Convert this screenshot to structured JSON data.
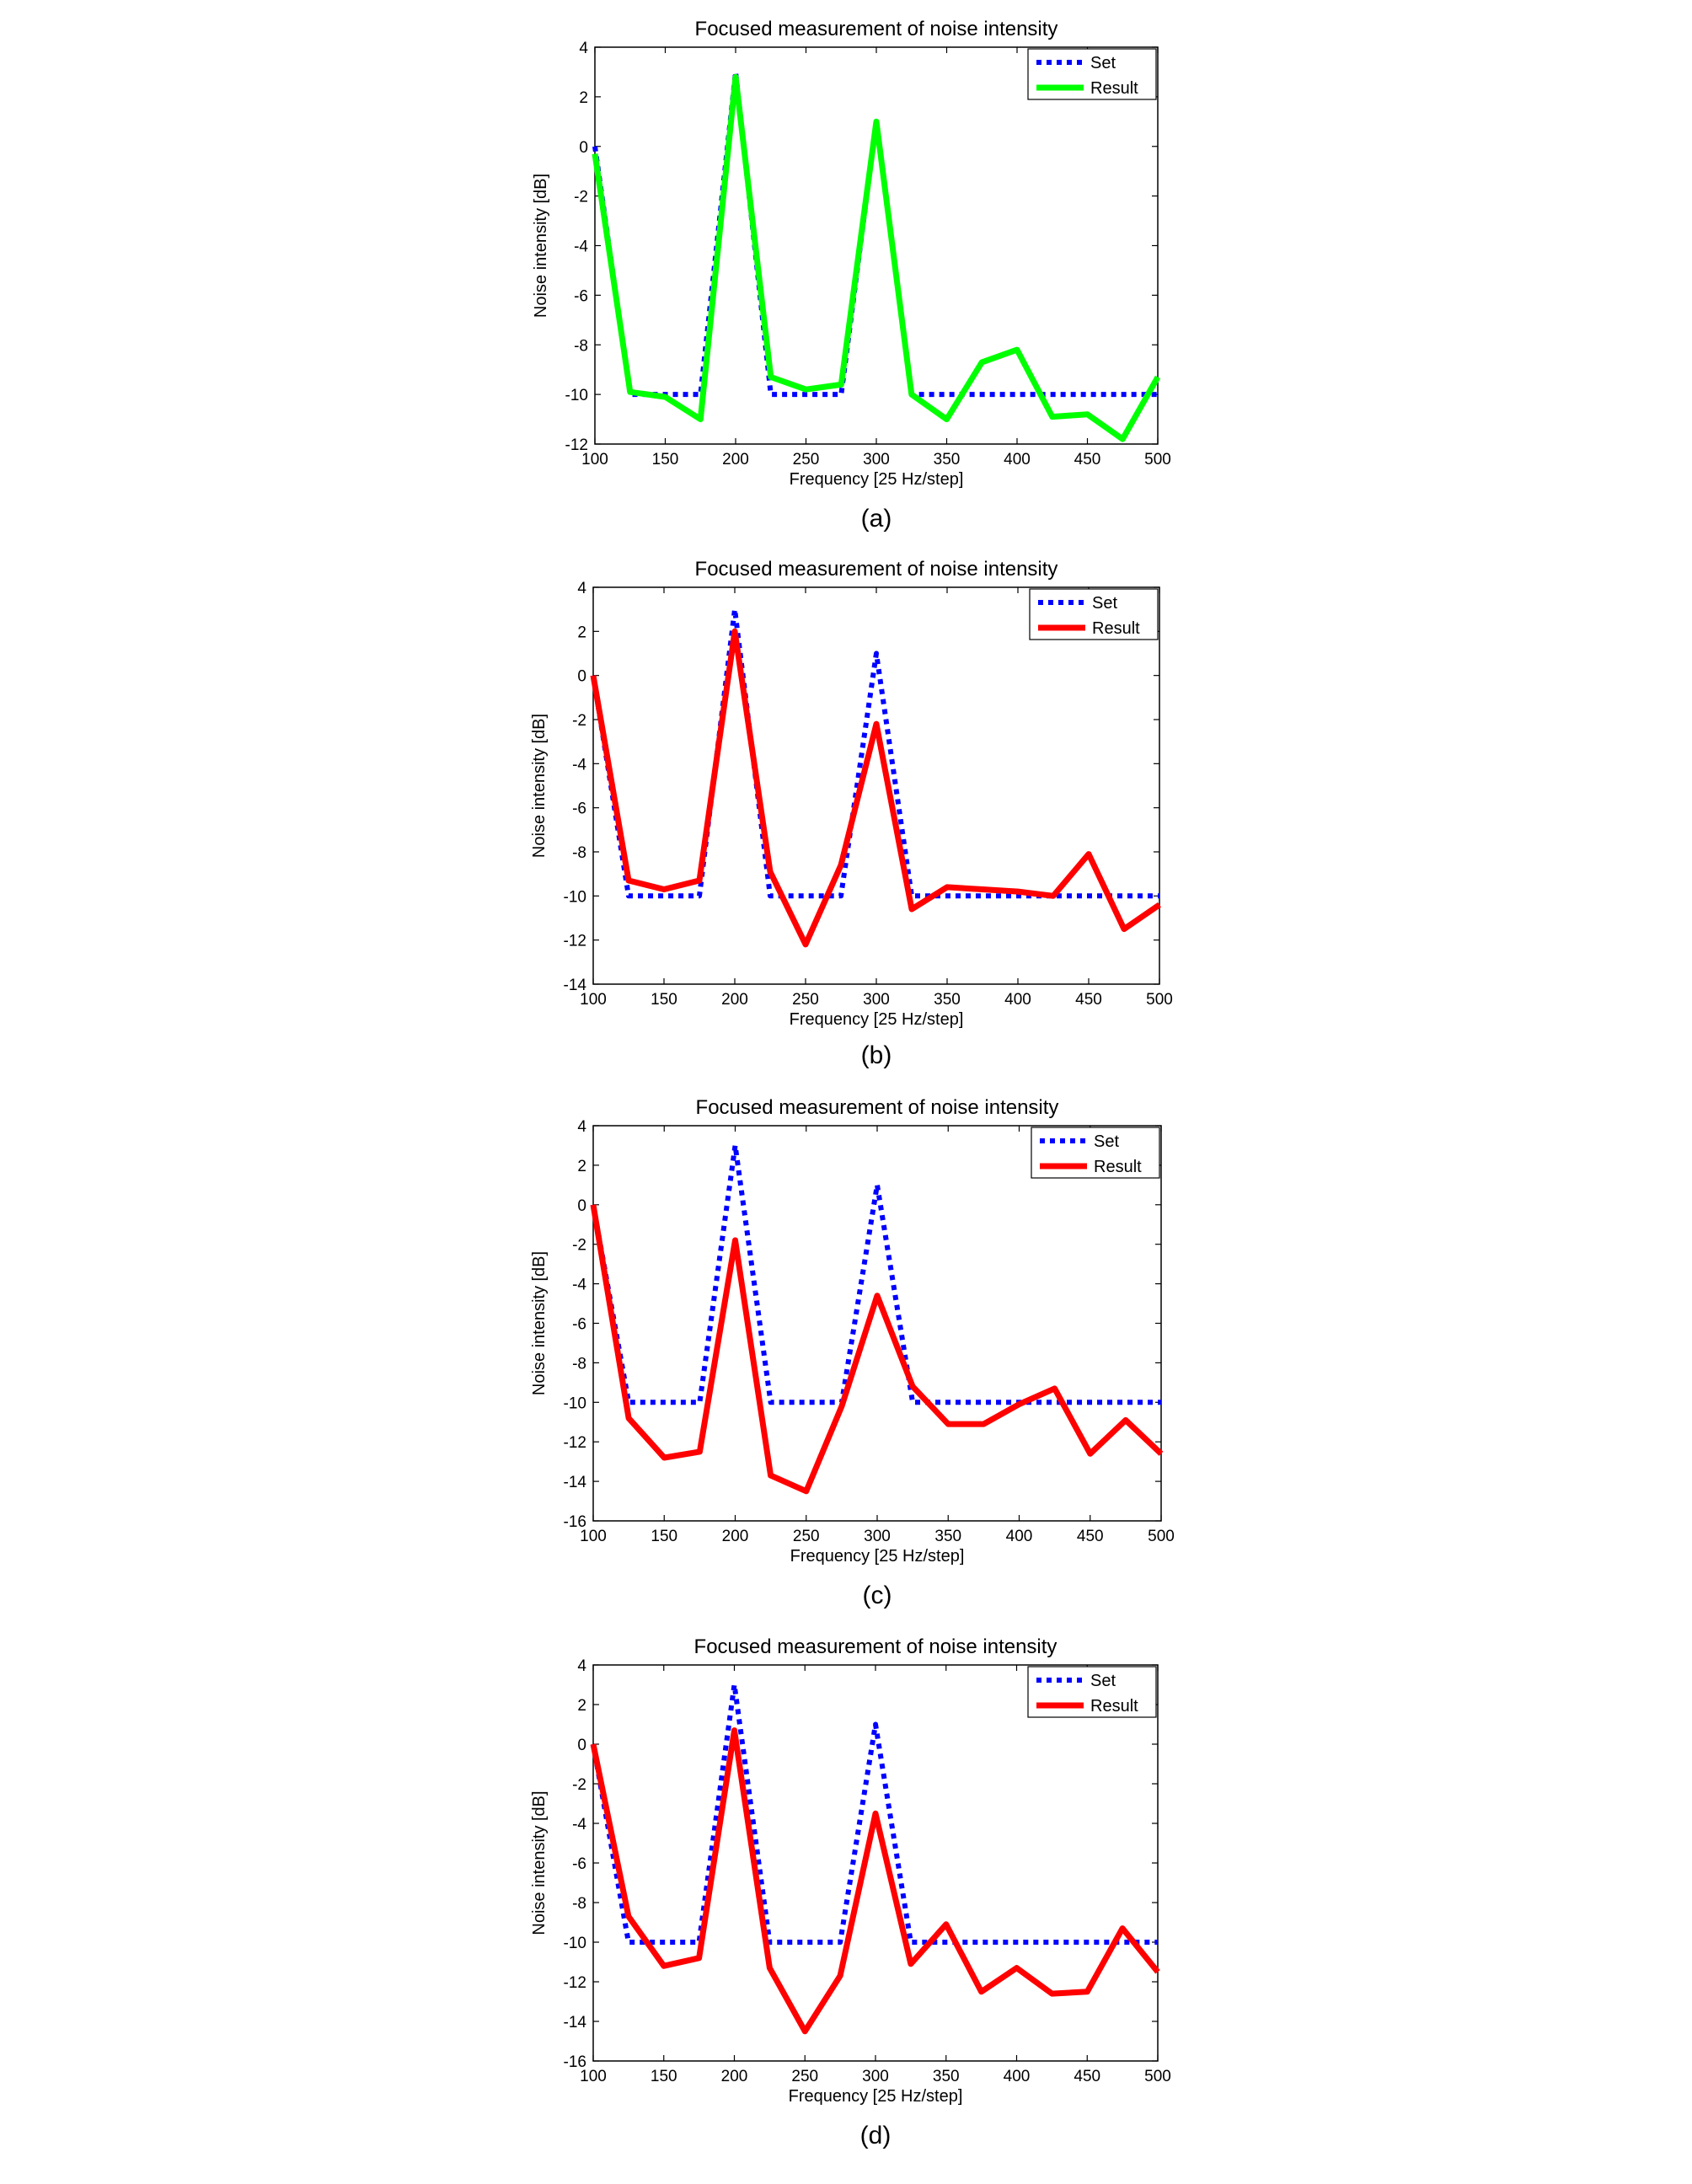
{
  "chart_data": [
    {
      "type": "line",
      "panel_label": "(a)",
      "title": "Focused measurement of noise intensity",
      "xlabel": "Frequency [25 Hz/step]",
      "ylabel": "Noise intensity [dB]",
      "xlim": [
        100,
        500
      ],
      "ylim": [
        -12,
        4
      ],
      "xticks": [
        100,
        150,
        200,
        250,
        300,
        350,
        400,
        450,
        500
      ],
      "yticks": [
        -12,
        -10,
        -8,
        -6,
        -4,
        -2,
        0,
        2,
        4
      ],
      "legend_position": "top-right",
      "x": [
        100,
        125,
        150,
        175,
        200,
        225,
        250,
        275,
        300,
        325,
        350,
        375,
        400,
        425,
        450,
        475,
        500
      ],
      "series": [
        {
          "name": "Set",
          "style": "dotted",
          "color": "#0000ff",
          "values": [
            0,
            -10,
            -10,
            -10,
            3,
            -10,
            -10,
            -10,
            1,
            -10,
            -10,
            -10,
            -10,
            -10,
            -10,
            -10,
            -10
          ]
        },
        {
          "name": "Result",
          "style": "solid",
          "color": "#00ff00",
          "values": [
            -0.3,
            -9.9,
            -10.1,
            -11,
            2.8,
            -9.3,
            -9.8,
            -9.6,
            1,
            -10,
            -11,
            -8.7,
            -8.2,
            -10.9,
            -10.8,
            -11.8,
            -9.3
          ]
        }
      ]
    },
    {
      "type": "line",
      "panel_label": "(b)",
      "title": "Focused measurement of noise intensity",
      "xlabel": "Frequency [25 Hz/step]",
      "ylabel": "Noise intensity [dB]",
      "xlim": [
        100,
        500
      ],
      "ylim": [
        -14,
        4
      ],
      "xticks": [
        100,
        150,
        200,
        250,
        300,
        350,
        400,
        450,
        500
      ],
      "yticks": [
        -14,
        -12,
        -10,
        -8,
        -6,
        -4,
        -2,
        0,
        2,
        4
      ],
      "legend_position": "top-right",
      "x": [
        100,
        125,
        150,
        175,
        200,
        225,
        250,
        275,
        300,
        325,
        350,
        375,
        400,
        425,
        450,
        475,
        500
      ],
      "series": [
        {
          "name": "Set",
          "style": "dotted",
          "color": "#0000ff",
          "values": [
            0,
            -10,
            -10,
            -10,
            3,
            -10,
            -10,
            -10,
            1,
            -10,
            -10,
            -10,
            -10,
            -10,
            -10,
            -10,
            -10
          ]
        },
        {
          "name": "Result",
          "style": "solid",
          "color": "#ff0000",
          "values": [
            0,
            -9.3,
            -9.7,
            -9.3,
            2,
            -8.9,
            -12.2,
            -8.6,
            -2.2,
            -10.6,
            -9.6,
            -9.7,
            -9.8,
            -10,
            -8.1,
            -11.5,
            -10.4
          ]
        }
      ]
    },
    {
      "type": "line",
      "panel_label": "(c)",
      "title": "Focused measurement of noise intensity",
      "xlabel": "Frequency [25 Hz/step]",
      "ylabel": "Noise intensity [dB]",
      "xlim": [
        100,
        500
      ],
      "ylim": [
        -16,
        4
      ],
      "xticks": [
        100,
        150,
        200,
        250,
        300,
        350,
        400,
        450,
        500
      ],
      "yticks": [
        -16,
        -14,
        -12,
        -10,
        -8,
        -6,
        -4,
        -2,
        0,
        2,
        4
      ],
      "legend_position": "top-right",
      "x": [
        100,
        125,
        150,
        175,
        200,
        225,
        250,
        275,
        300,
        325,
        350,
        375,
        400,
        425,
        450,
        475,
        500
      ],
      "series": [
        {
          "name": "Set",
          "style": "dotted",
          "color": "#0000ff",
          "values": [
            0,
            -10,
            -10,
            -10,
            3,
            -10,
            -10,
            -10,
            1,
            -10,
            -10,
            -10,
            -10,
            -10,
            -10,
            -10,
            -10
          ]
        },
        {
          "name": "Result",
          "style": "solid",
          "color": "#ff0000",
          "values": [
            0,
            -10.8,
            -12.8,
            -12.5,
            -1.8,
            -13.7,
            -14.5,
            -10.2,
            -4.6,
            -9.2,
            -11.1,
            -11.1,
            -10.1,
            -9.3,
            -12.6,
            -10.9,
            -12.6
          ]
        }
      ]
    },
    {
      "type": "line",
      "panel_label": "(d)",
      "title": "Focused measurement of noise intensity",
      "xlabel": "Frequency [25 Hz/step]",
      "ylabel": "Noise intensity [dB]",
      "xlim": [
        100,
        500
      ],
      "ylim": [
        -16,
        4
      ],
      "xticks": [
        100,
        150,
        200,
        250,
        300,
        350,
        400,
        450,
        500
      ],
      "yticks": [
        -16,
        -14,
        -12,
        -10,
        -8,
        -6,
        -4,
        -2,
        0,
        2,
        4
      ],
      "legend_position": "top-right",
      "x": [
        100,
        125,
        150,
        175,
        200,
        225,
        250,
        275,
        300,
        325,
        350,
        375,
        400,
        425,
        450,
        475,
        500
      ],
      "series": [
        {
          "name": "Set",
          "style": "dotted",
          "color": "#0000ff",
          "values": [
            0,
            -10,
            -10,
            -10,
            3,
            -10,
            -10,
            -10,
            1,
            -10,
            -10,
            -10,
            -10,
            -10,
            -10,
            -10,
            -10
          ]
        },
        {
          "name": "Result",
          "style": "solid",
          "color": "#ff0000",
          "values": [
            0,
            -8.7,
            -11.2,
            -10.8,
            0.7,
            -11.3,
            -14.5,
            -11.7,
            -3.5,
            -11.1,
            -9.1,
            -12.5,
            -11.3,
            -12.6,
            -12.5,
            -9.3,
            -11.5
          ]
        }
      ]
    }
  ]
}
